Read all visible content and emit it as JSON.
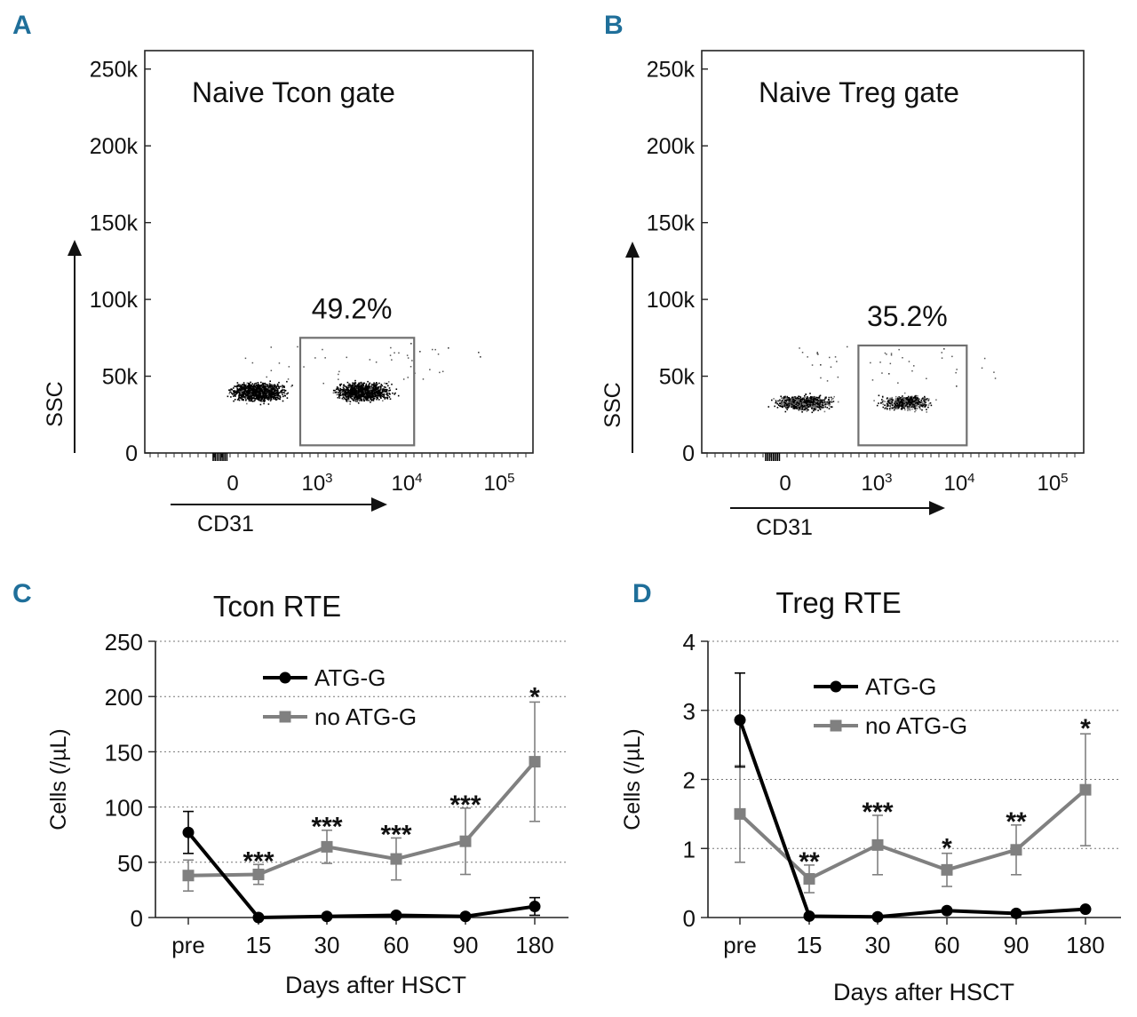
{
  "panels": [
    {
      "letter": "A",
      "color": "#1f6f9a"
    },
    {
      "letter": "B",
      "color": "#1f6f9a"
    },
    {
      "letter": "C",
      "color": "#1f6f9a"
    },
    {
      "letter": "D",
      "color": "#1f6f9a"
    }
  ],
  "colors": {
    "atg": "#000000",
    "no_atg": "#808080",
    "gate": "#707070"
  },
  "chart_data": [
    {
      "panel": "A",
      "type": "scatter",
      "title": "Naive Tcon gate",
      "xlabel": "CD31",
      "ylabel": "SSC",
      "yticks": [
        "250k",
        "200k",
        "150k",
        "100k",
        "50k",
        "0"
      ],
      "ytick_values": [
        250000,
        200000,
        150000,
        100000,
        50000,
        0
      ],
      "xticks": [
        {
          "base": "0",
          "exp": "",
          "value": 0
        },
        {
          "base": "10",
          "exp": "3",
          "value": 1000
        },
        {
          "base": "10",
          "exp": "4",
          "value": 10000
        },
        {
          "base": "10",
          "exp": "5",
          "value": 100000
        }
      ],
      "gate_percent": "49.2%",
      "gate_x_range": [
        800,
        12000
      ],
      "gate_y_range": [
        5000,
        75000
      ],
      "population_ssc_center": 40000
    },
    {
      "panel": "B",
      "type": "scatter",
      "title": "Naive Treg gate",
      "xlabel": "CD31",
      "ylabel": "SSC",
      "yticks": [
        "250k",
        "200k",
        "150k",
        "100k",
        "50k",
        "0"
      ],
      "ytick_values": [
        250000,
        200000,
        150000,
        100000,
        50000,
        0
      ],
      "xticks": [
        {
          "base": "0",
          "exp": "",
          "value": 0
        },
        {
          "base": "10",
          "exp": "3",
          "value": 1000
        },
        {
          "base": "10",
          "exp": "4",
          "value": 10000
        },
        {
          "base": "10",
          "exp": "5",
          "value": 100000
        }
      ],
      "gate_percent": "35.2%",
      "gate_x_range": [
        800,
        12000
      ],
      "gate_y_range": [
        5000,
        70000
      ],
      "population_ssc_center": 33000
    },
    {
      "panel": "C",
      "type": "line",
      "title": "Tcon RTE",
      "xlabel": "Days after HSCT",
      "ylabel": "Cells (/µL)",
      "categories": [
        "pre",
        "15",
        "30",
        "60",
        "90",
        "180"
      ],
      "yticks": [
        "0",
        "50",
        "100",
        "150",
        "200",
        "250"
      ],
      "ylim": [
        0,
        250
      ],
      "grid": true,
      "legend_position": "top",
      "series": [
        {
          "name": "ATG-G",
          "values": [
            77,
            0,
            1,
            2,
            1,
            10
          ],
          "err": [
            19,
            0,
            0,
            0,
            0,
            8
          ]
        },
        {
          "name": "no ATG-G",
          "values": [
            38,
            39,
            64,
            53,
            69,
            141
          ],
          "err": [
            14,
            9,
            15,
            19,
            30,
            54
          ]
        }
      ],
      "significance": [
        "",
        "***",
        "***",
        "***",
        "***",
        "*"
      ]
    },
    {
      "panel": "D",
      "type": "line",
      "title": "Treg RTE",
      "xlabel": "Days after HSCT",
      "ylabel": "Cells (/µL)",
      "categories": [
        "pre",
        "15",
        "30",
        "60",
        "90",
        "180"
      ],
      "yticks": [
        "0",
        "1",
        "2",
        "3",
        "4"
      ],
      "ylim": [
        0,
        4
      ],
      "grid": true,
      "legend_position": "top",
      "series": [
        {
          "name": "ATG-G",
          "values": [
            2.86,
            0.02,
            0.01,
            0.1,
            0.06,
            0.12
          ],
          "err": [
            0.68,
            0,
            0,
            0,
            0,
            0
          ]
        },
        {
          "name": "no ATG-G",
          "values": [
            1.5,
            0.56,
            1.05,
            0.69,
            0.98,
            1.85
          ],
          "err": [
            0.7,
            0.2,
            0.43,
            0.24,
            0.36,
            0.81
          ]
        }
      ],
      "significance": [
        "",
        "**",
        "***",
        "*",
        "**",
        "*"
      ]
    }
  ]
}
